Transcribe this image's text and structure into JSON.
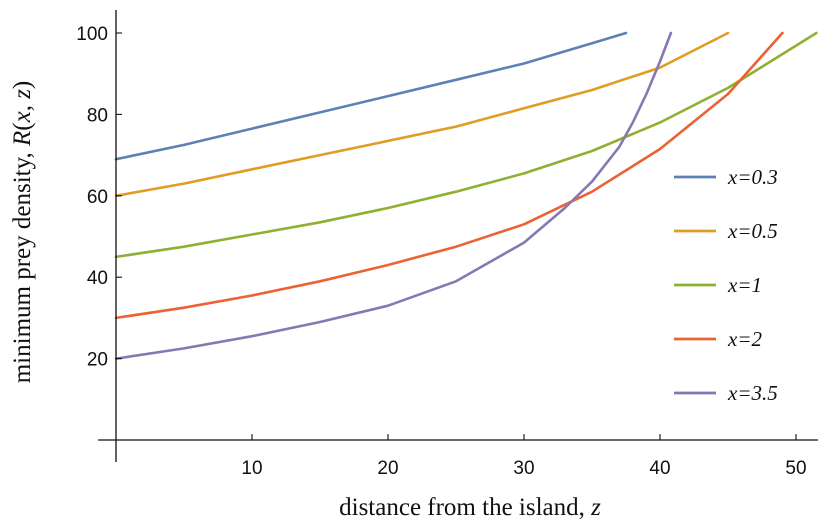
{
  "chart_data": {
    "type": "line",
    "title": "",
    "xlabel": "distance from the island, z",
    "xlabel_parts": [
      "distance from the island, ",
      "z"
    ],
    "ylabel": "minimum prey density, R(x, z)",
    "ylabel_parts": [
      "minimum prey density, ",
      "R",
      "(",
      "x",
      ", ",
      "z",
      ")"
    ],
    "xlim": [
      0,
      52
    ],
    "ylim": [
      0,
      105
    ],
    "xticks": [
      10,
      20,
      30,
      40,
      50
    ],
    "yticks": [
      20,
      40,
      60,
      80,
      100
    ],
    "grid": false,
    "legend_position": "right",
    "series": [
      {
        "name": "x=0.3",
        "color": "#5e81b5",
        "x": [
          0,
          5,
          10,
          15,
          20,
          25,
          30,
          35,
          37.5
        ],
        "y": [
          69,
          72.5,
          76.5,
          80.5,
          84.5,
          88.5,
          92.5,
          97.5,
          100
        ]
      },
      {
        "name": "x=0.5",
        "color": "#e19c24",
        "x": [
          0,
          5,
          10,
          15,
          20,
          25,
          30,
          35,
          40,
          45
        ],
        "y": [
          60,
          63,
          66.5,
          70,
          73.5,
          77,
          81.5,
          86,
          91.5,
          100
        ]
      },
      {
        "name": "x=1",
        "color": "#8fb032",
        "x": [
          0,
          5,
          10,
          15,
          20,
          25,
          30,
          35,
          40,
          45,
          51.5
        ],
        "y": [
          45,
          47.5,
          50.5,
          53.5,
          57,
          61,
          65.5,
          71,
          78,
          86.5,
          100
        ]
      },
      {
        "name": "x=2",
        "color": "#eb6235",
        "x": [
          0,
          5,
          10,
          15,
          20,
          25,
          30,
          35,
          40,
          45,
          49
        ],
        "y": [
          30,
          32.5,
          35.5,
          39,
          43,
          47.5,
          53,
          61,
          71.5,
          85,
          100
        ]
      },
      {
        "name": "x=3.5",
        "color": "#8778b3",
        "x": [
          0,
          5,
          10,
          15,
          20,
          25,
          30,
          33,
          35,
          37,
          38,
          39,
          40,
          40.8
        ],
        "y": [
          20,
          22.5,
          25.5,
          29,
          33,
          39,
          48.5,
          57,
          63.5,
          72,
          78,
          85,
          93,
          100
        ]
      }
    ]
  }
}
